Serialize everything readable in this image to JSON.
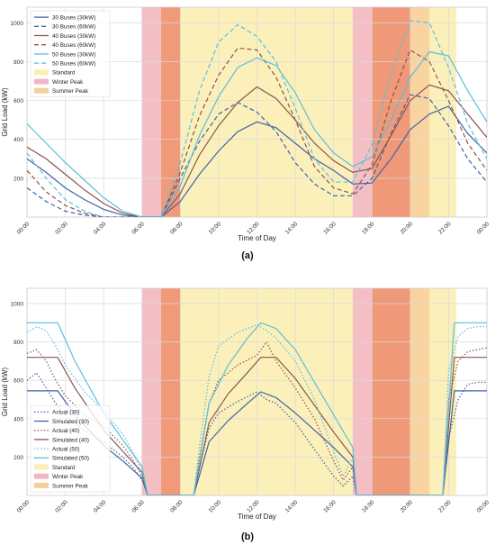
{
  "figure": {
    "panel_labels": [
      "(a)",
      "(b)"
    ]
  },
  "chart_data": [
    {
      "type": "line",
      "panel": "(a)",
      "xlabel": "Time of Day",
      "ylabel": "Grid Load (kW)",
      "xlim": [
        0,
        24
      ],
      "ylim": [
        0,
        1080
      ],
      "x_ticks": [
        0,
        2,
        4,
        6,
        8,
        10,
        12,
        14,
        16,
        18,
        20,
        22,
        24
      ],
      "x_tick_labels": [
        "00:00",
        "02:00",
        "04:00",
        "06:00",
        "08:00",
        "10:00",
        "12:00",
        "14:00",
        "16:00",
        "18:00",
        "20:00",
        "22:00",
        "00:00"
      ],
      "y_ticks": [
        200,
        400,
        600,
        800,
        1000
      ],
      "y_tick_labels": [
        "200",
        "400",
        "600",
        "800",
        "1000"
      ],
      "grid": true,
      "legend_position": "top-left",
      "periods": [
        {
          "name": "Standard",
          "color": "#fbeeb2",
          "ranges": [
            [
              6,
              22.4
            ]
          ]
        },
        {
          "name": "Winter Peak",
          "color": "#f2b6c6",
          "ranges": [
            [
              6,
              7
            ],
            [
              17,
              18
            ],
            [
              18,
              20
            ]
          ]
        },
        {
          "name": "Summer Peak",
          "color": "#f8cf9b",
          "ranges": [
            [
              7,
              8
            ],
            [
              18,
              20
            ],
            [
              20,
              21
            ]
          ]
        }
      ],
      "series": [
        {
          "name": "30 Buses (30kW)",
          "style": "solid",
          "color": "#3f63a8",
          "x": [
            0,
            1,
            2,
            3,
            4,
            5,
            6,
            7,
            8,
            9,
            10,
            11,
            12,
            13,
            14,
            15,
            16,
            17,
            18,
            19,
            20,
            21,
            22,
            23,
            24
          ],
          "y": [
            300,
            230,
            150,
            90,
            40,
            10,
            0,
            0,
            80,
            220,
            340,
            440,
            490,
            460,
            380,
            300,
            240,
            170,
            175,
            300,
            450,
            530,
            570,
            430,
            330
          ]
        },
        {
          "name": "30 Buses (60kW)",
          "style": "dashed",
          "color": "#3f63a8",
          "x": [
            0,
            1,
            2,
            3,
            4,
            5,
            6,
            7,
            8,
            9,
            10,
            11,
            12,
            13,
            14,
            15,
            16,
            17,
            18,
            19,
            20,
            21,
            22,
            23,
            24
          ],
          "y": [
            150,
            80,
            30,
            10,
            0,
            0,
            0,
            0,
            200,
            390,
            530,
            590,
            540,
            440,
            280,
            170,
            110,
            110,
            200,
            430,
            630,
            610,
            470,
            300,
            180
          ]
        },
        {
          "name": "40 Buses (30kW)",
          "style": "solid",
          "color": "#8b5450",
          "x": [
            0,
            1,
            2,
            3,
            4,
            5,
            6,
            7,
            8,
            9,
            10,
            11,
            12,
            13,
            14,
            15,
            16,
            17,
            18,
            19,
            20,
            21,
            22,
            23,
            24
          ],
          "y": [
            360,
            300,
            220,
            140,
            70,
            20,
            0,
            0,
            120,
            320,
            470,
            590,
            670,
            610,
            500,
            380,
            290,
            230,
            250,
            420,
            600,
            680,
            650,
            530,
            410
          ]
        },
        {
          "name": "40 Buses (60kW)",
          "style": "dashed",
          "color": "#8b5450",
          "x": [
            0,
            1,
            2,
            3,
            4,
            5,
            6,
            7,
            8,
            9,
            10,
            11,
            12,
            13,
            14,
            15,
            16,
            17,
            18,
            19,
            20,
            21,
            22,
            23,
            24
          ],
          "y": [
            240,
            130,
            60,
            20,
            0,
            0,
            0,
            0,
            230,
            520,
            730,
            870,
            860,
            720,
            500,
            260,
            150,
            120,
            270,
            600,
            860,
            800,
            600,
            380,
            240
          ]
        },
        {
          "name": "50 Buses (30kW)",
          "style": "solid",
          "color": "#5bbfdd",
          "x": [
            0,
            1,
            2,
            3,
            4,
            5,
            6,
            7,
            8,
            9,
            10,
            11,
            12,
            13,
            14,
            15,
            16,
            17,
            18,
            19,
            20,
            21,
            22,
            23,
            24
          ],
          "y": [
            480,
            380,
            280,
            190,
            100,
            30,
            0,
            0,
            160,
            420,
            620,
            770,
            820,
            780,
            640,
            450,
            330,
            260,
            310,
            500,
            720,
            850,
            830,
            650,
            490
          ]
        },
        {
          "name": "50 Buses (60kW)",
          "style": "dashed",
          "color": "#5bbfdd",
          "x": [
            0,
            1,
            2,
            3,
            4,
            5,
            6,
            7,
            8,
            9,
            10,
            11,
            12,
            13,
            14,
            15,
            16,
            17,
            18,
            19,
            20,
            21,
            22,
            23,
            24
          ],
          "y": [
            330,
            200,
            90,
            30,
            0,
            0,
            0,
            0,
            280,
            650,
            900,
            990,
            930,
            800,
            560,
            300,
            180,
            180,
            370,
            740,
            1010,
            1000,
            770,
            480,
            300
          ]
        }
      ]
    },
    {
      "type": "line",
      "panel": "(b)",
      "xlabel": "Time of Day",
      "ylabel": "Grid Load (kW)",
      "xlim": [
        0,
        24
      ],
      "ylim": [
        0,
        1080
      ],
      "x_ticks": [
        0,
        2,
        4,
        6,
        8,
        10,
        12,
        14,
        16,
        18,
        20,
        22,
        24
      ],
      "x_tick_labels": [
        "00:00",
        "02:00",
        "04:00",
        "06:00",
        "08:00",
        "10:00",
        "12:00",
        "14:00",
        "16:00",
        "18:00",
        "20:00",
        "22:00",
        "00:00"
      ],
      "y_ticks": [
        200,
        400,
        600,
        800,
        1000
      ],
      "y_tick_labels": [
        "200",
        "400",
        "600",
        "800",
        "1000"
      ],
      "grid": true,
      "legend_position": "bottom-left",
      "periods": [
        {
          "name": "Standard",
          "color": "#fbeeb2",
          "ranges": [
            [
              6,
              22.4
            ]
          ]
        },
        {
          "name": "Winter Peak",
          "color": "#f2b6c6",
          "ranges": [
            [
              6,
              7
            ],
            [
              17,
              18
            ],
            [
              18,
              20
            ]
          ]
        },
        {
          "name": "Summer Peak",
          "color": "#f8cf9b",
          "ranges": [
            [
              7,
              8
            ],
            [
              18,
              20
            ],
            [
              20,
              21
            ]
          ]
        }
      ],
      "series": [
        {
          "name": "Actual (30)",
          "style": "dotted",
          "color": "#3f63a8",
          "x": [
            0,
            0.5,
            1,
            1.5,
            2,
            3,
            4,
            5,
            5.5,
            6,
            6.3,
            8.7,
            9,
            9.5,
            10,
            11,
            12,
            12.5,
            13,
            14,
            15,
            16,
            16.5,
            17,
            17.2,
            21.7,
            22,
            22.5,
            23,
            23.5,
            24
          ],
          "y": [
            600,
            640,
            560,
            480,
            420,
            340,
            280,
            200,
            150,
            80,
            0,
            0,
            150,
            350,
            430,
            490,
            540,
            500,
            480,
            380,
            240,
            100,
            50,
            100,
            0,
            0,
            300,
            500,
            580,
            590,
            590
          ]
        },
        {
          "name": "Simulated (30)",
          "style": "solid",
          "color": "#3f63a8",
          "x": [
            0,
            1.6,
            2.5,
            4,
            5,
            6,
            6.3,
            8.7,
            9.5,
            10.5,
            11.5,
            12.2,
            13,
            14,
            15,
            16,
            17,
            17.2,
            21.7,
            22.3,
            24
          ],
          "y": [
            545,
            545,
            420,
            260,
            180,
            90,
            0,
            0,
            280,
            390,
            480,
            540,
            510,
            430,
            340,
            250,
            150,
            0,
            0,
            545,
            545
          ]
        },
        {
          "name": "Actual (40)",
          "style": "dotted",
          "color": "#8b5450",
          "x": [
            0,
            0.5,
            1,
            1.5,
            2,
            3,
            4,
            5,
            5.5,
            6,
            6.3,
            8.7,
            9,
            9.5,
            10,
            11,
            12,
            12.5,
            13,
            14,
            15,
            16,
            16.5,
            17,
            17.2,
            21.7,
            22,
            22.5,
            23,
            23.5,
            24
          ],
          "y": [
            740,
            760,
            700,
            600,
            520,
            420,
            360,
            260,
            190,
            100,
            0,
            0,
            200,
            480,
            600,
            680,
            730,
            800,
            700,
            560,
            400,
            180,
            80,
            150,
            0,
            0,
            500,
            700,
            750,
            760,
            770
          ]
        },
        {
          "name": "Simulated (40)",
          "style": "solid",
          "color": "#8b5450",
          "x": [
            0,
            1.6,
            2.5,
            4,
            5,
            6,
            6.3,
            8.7,
            9.5,
            10.5,
            11.5,
            12.2,
            13,
            14,
            15,
            16,
            17,
            17.2,
            21.7,
            22.3,
            24
          ],
          "y": [
            720,
            720,
            560,
            340,
            230,
            120,
            0,
            0,
            380,
            530,
            640,
            720,
            720,
            610,
            470,
            330,
            200,
            0,
            0,
            720,
            720
          ]
        },
        {
          "name": "Actual (50)",
          "style": "dotted",
          "color": "#5bbfdd",
          "x": [
            0,
            0.5,
            1,
            1.5,
            2,
            3,
            4,
            5,
            5.5,
            6,
            6.3,
            8.7,
            9,
            9.5,
            10,
            11,
            12,
            12.5,
            13,
            14,
            15,
            16,
            16.5,
            17,
            17.2,
            21.7,
            22,
            22.5,
            23,
            23.5,
            24
          ],
          "y": [
            850,
            880,
            860,
            780,
            680,
            540,
            440,
            320,
            230,
            120,
            0,
            0,
            260,
            620,
            780,
            850,
            890,
            860,
            820,
            700,
            500,
            230,
            100,
            200,
            0,
            0,
            650,
            830,
            870,
            880,
            880
          ]
        },
        {
          "name": "Simulated (50)",
          "style": "solid",
          "color": "#5bbfdd",
          "x": [
            0,
            1.6,
            2.5,
            4,
            5,
            6,
            6.3,
            8.7,
            9.5,
            10.5,
            11.5,
            12.2,
            13,
            14,
            15,
            16,
            17,
            17.2,
            21.7,
            22.3,
            24
          ],
          "y": [
            900,
            900,
            700,
            430,
            290,
            150,
            0,
            0,
            480,
            680,
            820,
            900,
            870,
            760,
            590,
            420,
            250,
            0,
            0,
            900,
            900
          ]
        }
      ]
    }
  ]
}
